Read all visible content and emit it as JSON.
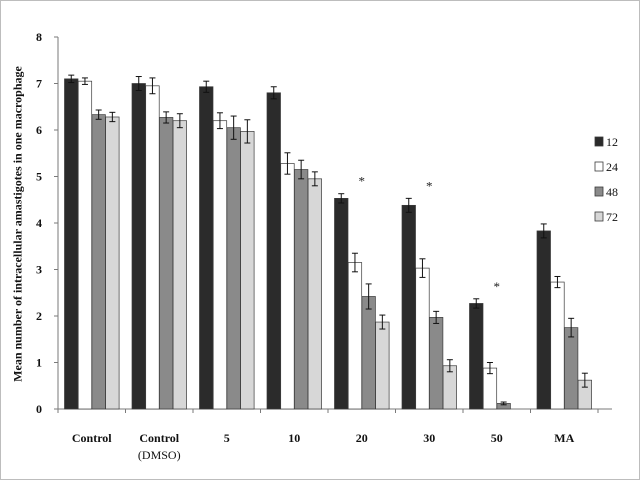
{
  "chart_data": {
    "type": "bar",
    "title": "",
    "xlabel": "",
    "ylabel": "Mean number of intracellular amastigotes in one macrophage",
    "ylim": [
      0,
      8
    ],
    "yticks": [
      0,
      1,
      2,
      3,
      4,
      5,
      6,
      7,
      8
    ],
    "grid": false,
    "legend_position": "right",
    "categories": [
      "Control",
      "Control\n(DMSO)",
      "5",
      "10",
      "20",
      "30",
      "50",
      "MA"
    ],
    "series": [
      {
        "name": "12",
        "color": "#2b2b2b",
        "values": [
          7.1,
          7.0,
          6.93,
          6.8,
          4.53,
          4.38,
          2.27,
          3.83
        ],
        "errors": [
          0.08,
          0.15,
          0.12,
          0.13,
          0.1,
          0.15,
          0.1,
          0.15
        ]
      },
      {
        "name": "24",
        "color": "#ffffff",
        "values": [
          7.05,
          6.95,
          6.2,
          5.28,
          3.15,
          3.03,
          0.88,
          2.73
        ],
        "errors": [
          0.07,
          0.17,
          0.17,
          0.23,
          0.2,
          0.2,
          0.12,
          0.12
        ]
      },
      {
        "name": "48",
        "color": "#8a8a8a",
        "values": [
          6.33,
          6.27,
          6.05,
          5.15,
          2.42,
          1.97,
          0.12,
          1.75
        ],
        "errors": [
          0.1,
          0.12,
          0.25,
          0.2,
          0.27,
          0.13,
          0.03,
          0.2
        ]
      },
      {
        "name": "72",
        "color": "#d7d7d7",
        "values": [
          6.28,
          6.2,
          5.97,
          4.95,
          1.87,
          0.93,
          0,
          0.62
        ],
        "errors": [
          0.1,
          0.15,
          0.25,
          0.15,
          0.15,
          0.13,
          0,
          0.15
        ]
      }
    ],
    "annotations": [
      {
        "category": "20",
        "text": "*"
      },
      {
        "category": "30",
        "text": "*"
      },
      {
        "category": "50",
        "text": "*"
      }
    ]
  }
}
